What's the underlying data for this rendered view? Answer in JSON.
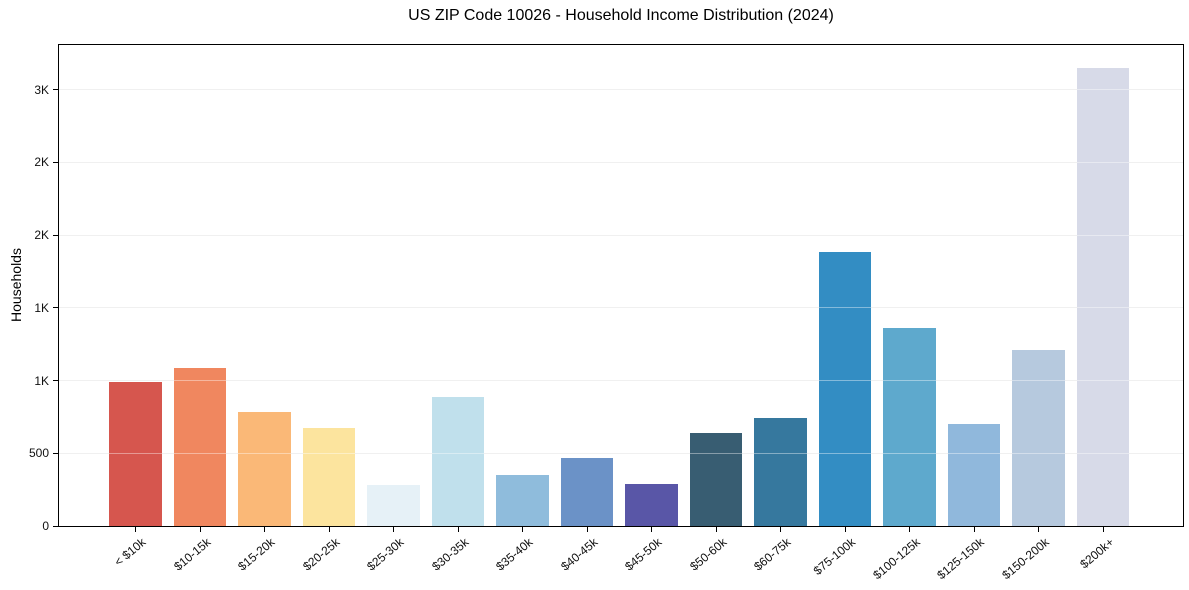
{
  "title": "US ZIP Code 10026 - Household Income Distribution (2024)",
  "chart_data": {
    "type": "bar",
    "title": "US ZIP Code 10026 - Household Income Distribution (2024)",
    "xlabel": "",
    "ylabel": "Households",
    "categories": [
      "< $10k",
      "$10-15k",
      "$15-20k",
      "$20-25k",
      "$25-30k",
      "$30-35k",
      "$35-40k",
      "$40-45k",
      "$45-50k",
      "$50-60k",
      "$60-75k",
      "$75-100k",
      "$100-125k",
      "$125-150k",
      "$150-200k",
      "$200k+"
    ],
    "values": [
      990,
      1090,
      785,
      675,
      280,
      885,
      350,
      465,
      290,
      640,
      745,
      1885,
      1365,
      700,
      1210,
      3150
    ],
    "bar_colors": [
      "#d6564e",
      "#f0875f",
      "#fab877",
      "#fce49e",
      "#e6f1f7",
      "#c0e0ec",
      "#8fbcdc",
      "#6b92c7",
      "#5956a7",
      "#385d72",
      "#36789e",
      "#338dc3",
      "#5ea9cd",
      "#90b8dc",
      "#b6c9de",
      "#d7dae8"
    ],
    "ylim": [
      0,
      3308
    ],
    "yticks": [
      {
        "value": 0,
        "label": "0"
      },
      {
        "value": 500,
        "label": "500"
      },
      {
        "value": 1000,
        "label": "1K"
      },
      {
        "value": 1500,
        "label": "1K"
      },
      {
        "value": 2000,
        "label": "2K"
      },
      {
        "value": 2500,
        "label": "2K"
      },
      {
        "value": 3000,
        "label": "3K"
      }
    ],
    "grid": "horizontal",
    "legend_position": "none"
  },
  "colors": {
    "background": "#ffffff",
    "axis": "#000000",
    "gridline": "#e7e7e7",
    "text": "#111111"
  }
}
